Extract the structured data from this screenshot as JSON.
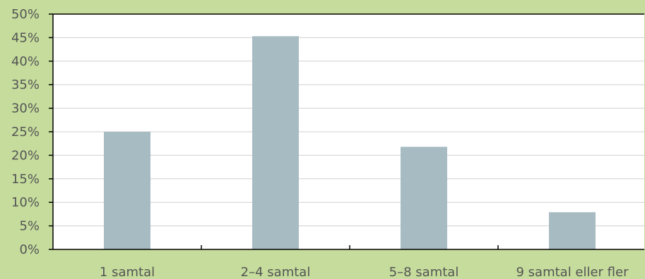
{
  "chart_data": {
    "type": "bar",
    "categories": [
      "1 samtal",
      "2–4 samtal",
      "5–8 samtal",
      "9 samtal eller fler"
    ],
    "values": [
      25,
      45.3,
      21.8,
      7.9
    ],
    "ylim": [
      0,
      50
    ],
    "ytick_step": 5,
    "ytick_labels": [
      "0%",
      "5%",
      "10%",
      "15%",
      "20%",
      "25%",
      "30%",
      "35%",
      "40%",
      "45%",
      "50%"
    ],
    "title": "",
    "xlabel": "",
    "ylabel": "",
    "grid": true,
    "legend": "none",
    "colors": {
      "background": "#c5dc9c",
      "plot_area": "#ffffff",
      "bar": "#a7bbc3",
      "grid": "#d0d0d0",
      "axis": "#000000",
      "text": "#555555"
    }
  }
}
